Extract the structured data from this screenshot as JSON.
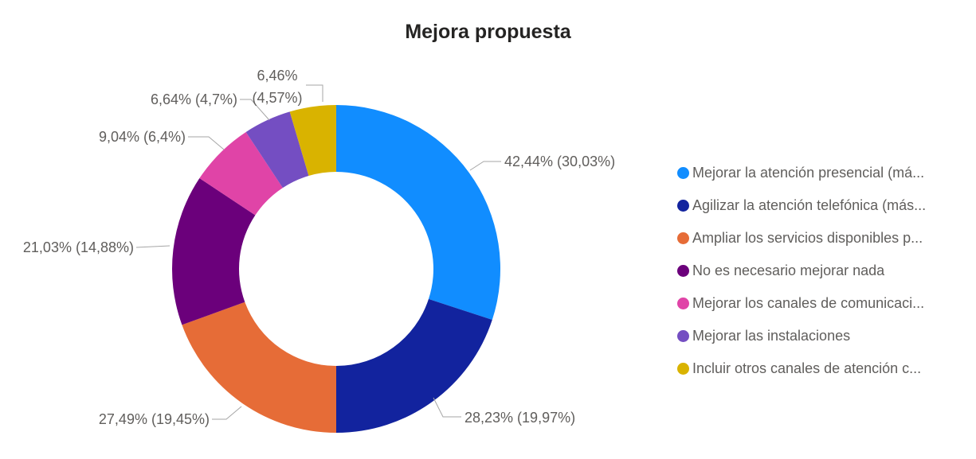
{
  "title": "Mejora propuesta",
  "chart_data": {
    "type": "pie",
    "subtype": "donut",
    "title": "Mejora propuesta",
    "legend_position": "center-right",
    "label_format": "pct_respondents% (pct_of_total%)",
    "background": "#FFFFFF",
    "title_color": "#252423",
    "label_text_color": "#605E5C",
    "leader_line_color": "#A6A6A6",
    "slices": [
      {
        "name": "Mejorar la atención presencial (má...",
        "pct_respondents": 42.44,
        "pct_of_total": 30.03,
        "data_label": "42,44% (30,03%)",
        "color": "#118DFF"
      },
      {
        "name": "Agilizar la atención telefónica (más...",
        "pct_respondents": 28.23,
        "pct_of_total": 19.97,
        "data_label": "28,23% (19,97%)",
        "color": "#12239E"
      },
      {
        "name": "Ampliar los servicios disponibles p...",
        "pct_respondents": 27.49,
        "pct_of_total": 19.45,
        "data_label": "27,49% (19,45%)",
        "color": "#E66C37"
      },
      {
        "name": "No es necesario mejorar nada",
        "pct_respondents": 21.03,
        "pct_of_total": 14.88,
        "data_label": "21,03% (14,88%)",
        "color": "#6B007B"
      },
      {
        "name": "Mejorar los canales de comunicaci...",
        "pct_respondents": 9.04,
        "pct_of_total": 6.4,
        "data_label": "9,04% (6,4%)",
        "color": "#E044A7"
      },
      {
        "name": "Mejorar las instalaciones",
        "pct_respondents": 6.64,
        "pct_of_total": 4.7,
        "data_label": "6,64% (4,7%)",
        "color": "#744EC2"
      },
      {
        "name": "Incluir otros canales de atención c...",
        "pct_respondents": 6.46,
        "pct_of_total": 4.57,
        "data_label": "6,46%\n(4,57%)",
        "color": "#D9B300"
      }
    ]
  }
}
